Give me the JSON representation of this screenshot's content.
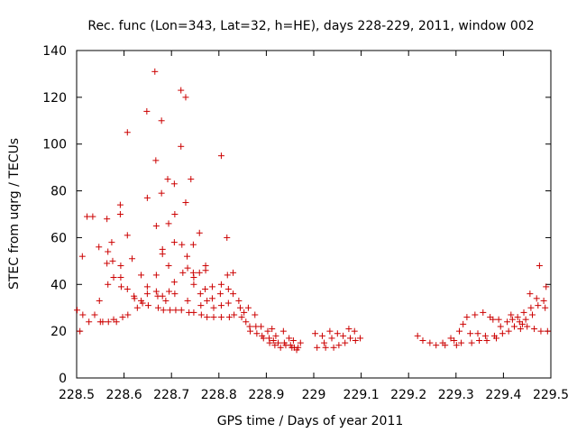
{
  "chart_data": {
    "type": "scatter",
    "title": "Rec. func (Lon=343, Lat=32, h=HE), days 228-229, 2011, window 002",
    "xlabel": "GPS time / Days of year 2011",
    "ylabel": "STEC from uqrg / TECUs",
    "xlim": [
      228.5,
      229.5
    ],
    "ylim": [
      0,
      140
    ],
    "xticks": [
      "228.5",
      "228.6",
      "228.7",
      "228.8",
      "228.9",
      "229",
      "229.1",
      "229.2",
      "229.3",
      "229.4",
      "229.5"
    ],
    "yticks": [
      "0",
      "20",
      "40",
      "60",
      "80",
      "100",
      "120",
      "140"
    ],
    "grid": false,
    "marker": "+",
    "color": "#cc0000",
    "series": [
      {
        "points": [
          [
            228.501,
            29
          ],
          [
            228.507,
            20
          ],
          [
            228.512,
            52
          ],
          [
            228.513,
            27
          ],
          [
            228.522,
            69
          ],
          [
            228.526,
            24
          ],
          [
            228.534,
            69
          ],
          [
            228.538,
            27
          ],
          [
            228.547,
            56
          ],
          [
            228.548,
            33
          ],
          [
            228.55,
            24
          ],
          [
            228.555,
            24
          ],
          [
            228.564,
            68
          ],
          [
            228.566,
            54
          ],
          [
            228.564,
            49
          ],
          [
            228.566,
            40
          ],
          [
            228.567,
            24
          ],
          [
            228.574,
            58
          ],
          [
            228.576,
            50
          ],
          [
            228.578,
            43
          ],
          [
            228.578,
            25
          ],
          [
            228.584,
            24
          ],
          [
            228.592,
            74
          ],
          [
            228.592,
            70
          ],
          [
            228.593,
            48
          ],
          [
            228.593,
            43
          ],
          [
            228.594,
            39
          ],
          [
            228.597,
            26
          ],
          [
            228.607,
            105
          ],
          [
            228.607,
            61
          ],
          [
            228.607,
            38
          ],
          [
            228.608,
            27
          ],
          [
            228.617,
            51
          ],
          [
            228.621,
            35
          ],
          [
            228.622,
            34
          ],
          [
            228.628,
            30
          ],
          [
            228.636,
            44
          ],
          [
            228.636,
            33
          ],
          [
            228.639,
            32
          ],
          [
            228.648,
            114
          ],
          [
            228.649,
            77
          ],
          [
            228.649,
            39
          ],
          [
            228.649,
            36
          ],
          [
            228.651,
            31
          ],
          [
            228.665,
            131
          ],
          [
            228.667,
            93
          ],
          [
            228.668,
            65
          ],
          [
            228.668,
            44
          ],
          [
            228.668,
            37
          ],
          [
            228.671,
            35
          ],
          [
            228.672,
            30
          ],
          [
            228.679,
            110
          ],
          [
            228.679,
            79
          ],
          [
            228.681,
            55
          ],
          [
            228.681,
            53
          ],
          [
            228.681,
            35
          ],
          [
            228.683,
            29
          ],
          [
            228.688,
            33
          ],
          [
            228.692,
            85
          ],
          [
            228.694,
            66
          ],
          [
            228.694,
            48
          ],
          [
            228.695,
            37
          ],
          [
            228.697,
            29
          ],
          [
            228.706,
            83
          ],
          [
            228.707,
            70
          ],
          [
            228.706,
            58
          ],
          [
            228.706,
            41
          ],
          [
            228.707,
            36
          ],
          [
            228.709,
            29
          ],
          [
            228.72,
            123
          ],
          [
            228.72,
            99
          ],
          [
            228.722,
            57
          ],
          [
            228.724,
            45
          ],
          [
            228.721,
            29
          ],
          [
            228.73,
            120
          ],
          [
            228.73,
            75
          ],
          [
            228.733,
            52
          ],
          [
            228.734,
            47
          ],
          [
            228.734,
            33
          ],
          [
            228.737,
            28
          ],
          [
            228.741,
            85
          ],
          [
            228.746,
            57
          ],
          [
            228.746,
            45
          ],
          [
            228.747,
            43
          ],
          [
            228.747,
            40
          ],
          [
            228.747,
            28
          ],
          [
            228.759,
            62
          ],
          [
            228.759,
            45
          ],
          [
            228.761,
            36
          ],
          [
            228.762,
            31
          ],
          [
            228.763,
            27
          ],
          [
            228.772,
            48
          ],
          [
            228.772,
            46
          ],
          [
            228.771,
            38
          ],
          [
            228.775,
            33
          ],
          [
            228.775,
            26
          ],
          [
            228.786,
            39
          ],
          [
            228.786,
            34
          ],
          [
            228.789,
            30
          ],
          [
            228.789,
            26
          ],
          [
            228.805,
            95
          ],
          [
            228.805,
            40
          ],
          [
            228.803,
            36
          ],
          [
            228.805,
            31
          ],
          [
            228.805,
            26
          ],
          [
            228.817,
            60
          ],
          [
            228.818,
            44
          ],
          [
            228.82,
            38
          ],
          [
            228.82,
            32
          ],
          [
            228.822,
            26
          ],
          [
            228.83,
            45
          ],
          [
            228.83,
            36
          ],
          [
            228.832,
            27
          ],
          [
            228.842,
            33
          ],
          [
            228.845,
            30
          ],
          [
            228.848,
            26
          ],
          [
            228.853,
            28
          ],
          [
            228.857,
            24
          ],
          [
            228.862,
            30
          ],
          [
            228.865,
            22
          ],
          [
            228.866,
            20
          ],
          [
            228.876,
            27
          ],
          [
            228.878,
            22
          ],
          [
            228.88,
            19
          ],
          [
            228.889,
            22
          ],
          [
            228.891,
            18
          ],
          [
            228.894,
            17
          ],
          [
            228.903,
            20
          ],
          [
            228.906,
            17
          ],
          [
            228.907,
            15
          ],
          [
            228.912,
            21
          ],
          [
            228.915,
            16
          ],
          [
            228.918,
            14
          ],
          [
            228.92,
            18
          ],
          [
            228.925,
            15
          ],
          [
            228.93,
            13
          ],
          [
            228.936,
            20
          ],
          [
            228.938,
            15
          ],
          [
            228.941,
            14
          ],
          [
            228.948,
            17
          ],
          [
            228.951,
            14
          ],
          [
            228.954,
            13
          ],
          [
            228.957,
            16
          ],
          [
            228.959,
            13
          ],
          [
            228.964,
            12
          ],
          [
            228.967,
            13
          ],
          [
            228.972,
            15
          ],
          [
            229.003,
            19
          ],
          [
            229.007,
            13
          ],
          [
            229.018,
            18
          ],
          [
            229.022,
            15
          ],
          [
            229.025,
            13
          ],
          [
            229.034,
            20
          ],
          [
            229.038,
            17
          ],
          [
            229.042,
            13
          ],
          [
            229.05,
            19
          ],
          [
            229.053,
            14
          ],
          [
            229.062,
            18
          ],
          [
            229.066,
            15
          ],
          [
            229.074,
            21
          ],
          [
            229.077,
            17
          ],
          [
            229.086,
            20
          ],
          [
            229.088,
            16
          ],
          [
            229.098,
            17
          ],
          [
            229.219,
            18
          ],
          [
            229.23,
            16
          ],
          [
            229.245,
            15
          ],
          [
            229.258,
            14
          ],
          [
            229.272,
            15
          ],
          [
            229.277,
            14
          ],
          [
            229.289,
            17
          ],
          [
            229.296,
            16
          ],
          [
            229.301,
            14
          ],
          [
            229.307,
            20
          ],
          [
            229.311,
            15
          ],
          [
            229.315,
            23
          ],
          [
            229.323,
            26
          ],
          [
            229.33,
            19
          ],
          [
            229.333,
            15
          ],
          [
            229.34,
            27
          ],
          [
            229.346,
            19
          ],
          [
            229.349,
            16
          ],
          [
            229.357,
            28
          ],
          [
            229.362,
            18
          ],
          [
            229.365,
            16
          ],
          [
            229.372,
            26
          ],
          [
            229.378,
            25
          ],
          [
            229.381,
            18
          ],
          [
            229.385,
            17
          ],
          [
            229.39,
            25
          ],
          [
            229.394,
            22
          ],
          [
            229.398,
            19
          ],
          [
            229.408,
            24
          ],
          [
            229.411,
            20
          ],
          [
            229.416,
            27
          ],
          [
            229.419,
            25
          ],
          [
            229.423,
            22
          ],
          [
            229.43,
            26
          ],
          [
            229.434,
            24
          ],
          [
            229.436,
            21
          ],
          [
            229.44,
            23
          ],
          [
            229.443,
            28
          ],
          [
            229.447,
            25
          ],
          [
            229.45,
            22
          ],
          [
            229.456,
            36
          ],
          [
            229.458,
            30
          ],
          [
            229.461,
            27
          ],
          [
            229.465,
            21
          ],
          [
            229.47,
            34
          ],
          [
            229.473,
            31
          ],
          [
            229.476,
            48
          ],
          [
            229.479,
            20
          ],
          [
            229.485,
            33
          ],
          [
            229.488,
            30
          ],
          [
            229.49,
            39
          ],
          [
            229.493,
            20
          ]
        ]
      }
    ]
  }
}
